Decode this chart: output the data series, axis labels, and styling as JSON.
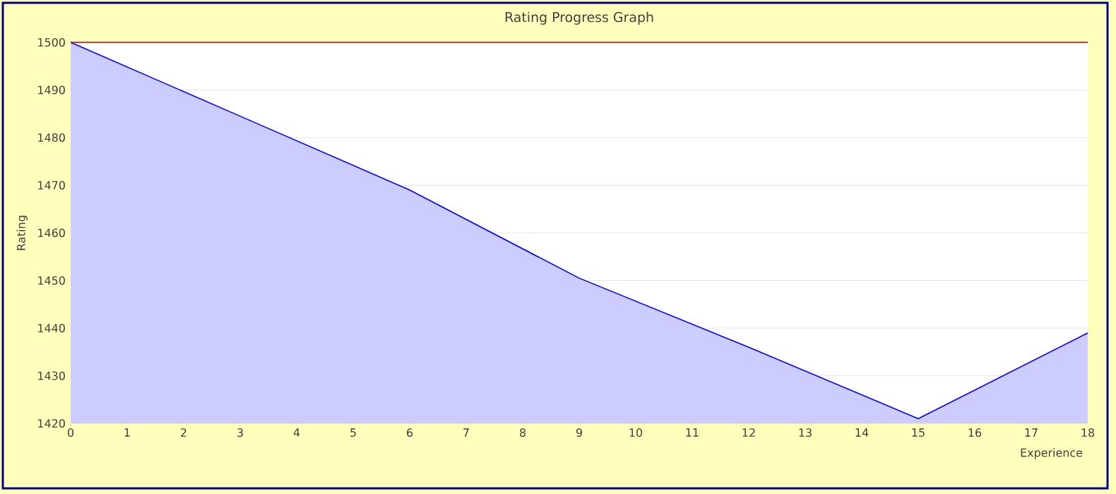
{
  "chart_data": {
    "type": "area",
    "title": "Rating Progress Graph",
    "xlabel": "Experience",
    "ylabel": "Rating",
    "x": [
      0,
      3,
      6,
      9,
      12,
      15,
      18
    ],
    "series": [
      {
        "color": "#0000ff",
        "values": [
          1500,
          1484.5,
          1469,
          1450.5,
          1436,
          1421,
          1439
        ]
      }
    ],
    "xlim": [
      0,
      18
    ],
    "xticks": [
      0,
      1,
      2,
      3,
      4,
      5,
      6,
      7,
      8,
      9,
      10,
      11,
      12,
      13,
      14,
      15,
      16,
      17,
      18
    ],
    "ylim": [
      1420,
      1500
    ],
    "yticks": [
      1420,
      1430,
      1440,
      1450,
      1460,
      1470,
      1480,
      1490,
      1500
    ],
    "grid": "y",
    "ref_lines": [
      {
        "axis": "y",
        "value": 1500,
        "color": "#cc0000"
      }
    ]
  }
}
